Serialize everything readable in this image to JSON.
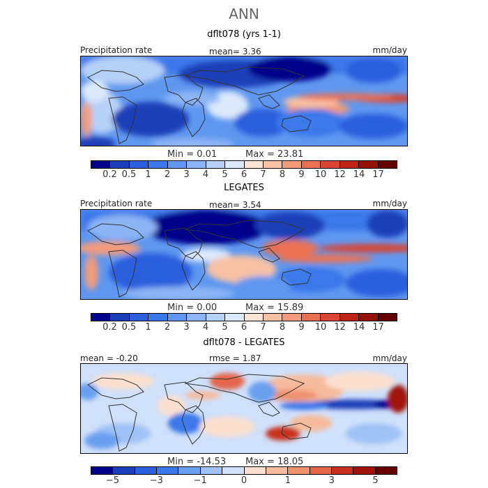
{
  "title": "ANN",
  "panels": [
    {
      "title": "dflt078 (yrs 1-1)",
      "left_label": "Precipitation rate",
      "center_label": "mean=   3.36",
      "right_label": "mm/day",
      "min_label": "Min =     0.01",
      "max_label": "Max =   23.81",
      "colorbar": {
        "colors": [
          "#00008b",
          "#1a3fb8",
          "#2b5fdd",
          "#3a78ea",
          "#5f97f0",
          "#8cb5f5",
          "#b6d1f8",
          "#dce9fb",
          "#fbe3d4",
          "#f8c1a4",
          "#f29b7b",
          "#ea7052",
          "#db4533",
          "#bd2415",
          "#941108",
          "#650000"
        ],
        "tick_labels": [
          "0.2",
          "0.5",
          "1",
          "2",
          "3",
          "4",
          "5",
          "6",
          "7",
          "8",
          "9",
          "10",
          "12",
          "14",
          "17"
        ]
      }
    },
    {
      "title": "LEGATES",
      "left_label": "Precipitation rate",
      "center_label": "mean=   3.54",
      "right_label": "mm/day",
      "min_label": "Min =     0.00",
      "max_label": "Max =   15.89",
      "colorbar": {
        "colors": [
          "#00008b",
          "#1a3fb8",
          "#2b5fdd",
          "#3a78ea",
          "#5f97f0",
          "#8cb5f5",
          "#b6d1f8",
          "#dce9fb",
          "#fbe3d4",
          "#f8c1a4",
          "#f29b7b",
          "#ea7052",
          "#db4533",
          "#bd2415",
          "#941108",
          "#650000"
        ],
        "tick_labels": [
          "0.2",
          "0.5",
          "1",
          "2",
          "3",
          "4",
          "5",
          "6",
          "7",
          "8",
          "9",
          "10",
          "12",
          "14",
          "17"
        ]
      }
    },
    {
      "title": "dflt078 - LEGATES",
      "left_label": "mean =   -0.20",
      "center_label": "rmse =    1.87",
      "right_label": "mm/day",
      "min_label": "Min =  -14.53",
      "max_label": "Max =   18.05",
      "colorbar": {
        "colors": [
          "#00008b",
          "#1a3fb8",
          "#2b5fdd",
          "#3a78ea",
          "#6b9ff0",
          "#9ec2f6",
          "#cfe0fa",
          "#fbe0d0",
          "#f6bb9c",
          "#ef9270",
          "#e4654a",
          "#c9301f",
          "#a0120a",
          "#650000"
        ],
        "tick_labels": [
          "-5",
          "",
          "-3",
          "",
          "-1",
          "",
          "0",
          "",
          "1",
          "",
          "3",
          "",
          "5"
        ]
      }
    }
  ]
}
